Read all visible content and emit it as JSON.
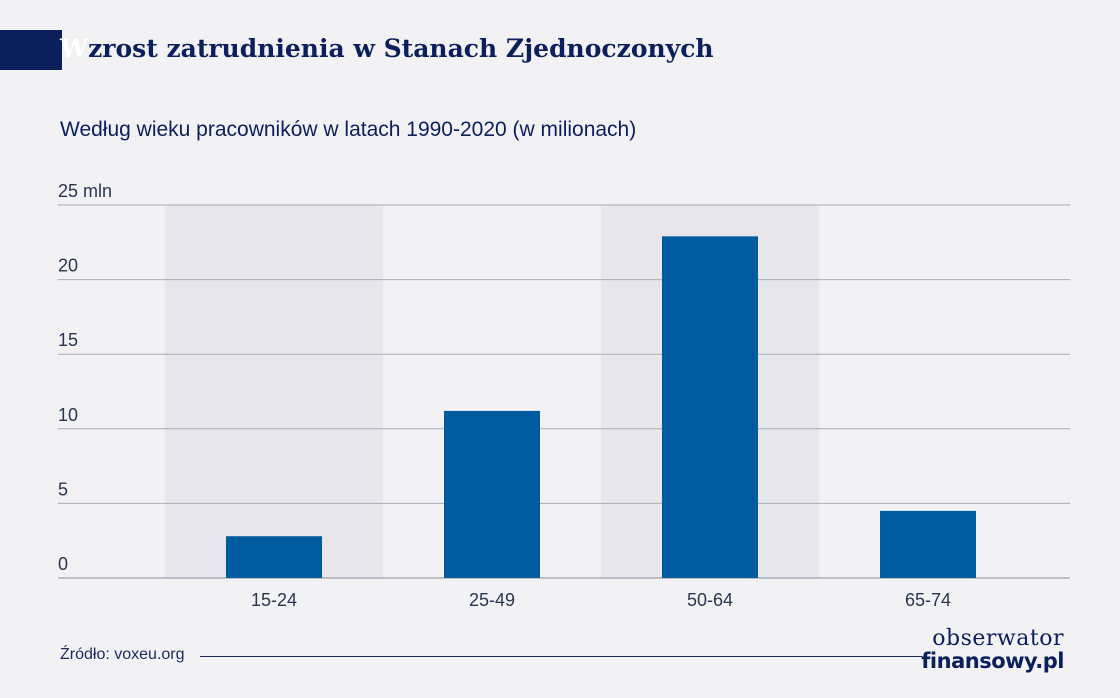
{
  "header": {
    "title_first": "W",
    "title_rest": "zrost zatrudnienia w Stanach Zjednoczonych",
    "subtitle": "Według wieku pracowników w latach 1990-2020 (w milionach)"
  },
  "chart_data": {
    "type": "bar",
    "categories": [
      "15-24",
      "25-49",
      "50-64",
      "65-74"
    ],
    "values": [
      2.8,
      11.2,
      22.9,
      4.5
    ],
    "highlighted_categories": [
      "15-24",
      "50-64"
    ],
    "ylim": [
      0,
      25
    ],
    "yticks": [
      0,
      5,
      10,
      15,
      20,
      25
    ],
    "ytick_labels": [
      "0",
      "5",
      "10",
      "15",
      "20",
      "25 mln"
    ],
    "grid": true,
    "bar_color": "#005a9e",
    "highlight_color": "#e6e6ec"
  },
  "footer": {
    "source": "Źródło: voxeu.org",
    "logo_line1": "obserwator",
    "logo_line2": "finansowy.pl"
  }
}
